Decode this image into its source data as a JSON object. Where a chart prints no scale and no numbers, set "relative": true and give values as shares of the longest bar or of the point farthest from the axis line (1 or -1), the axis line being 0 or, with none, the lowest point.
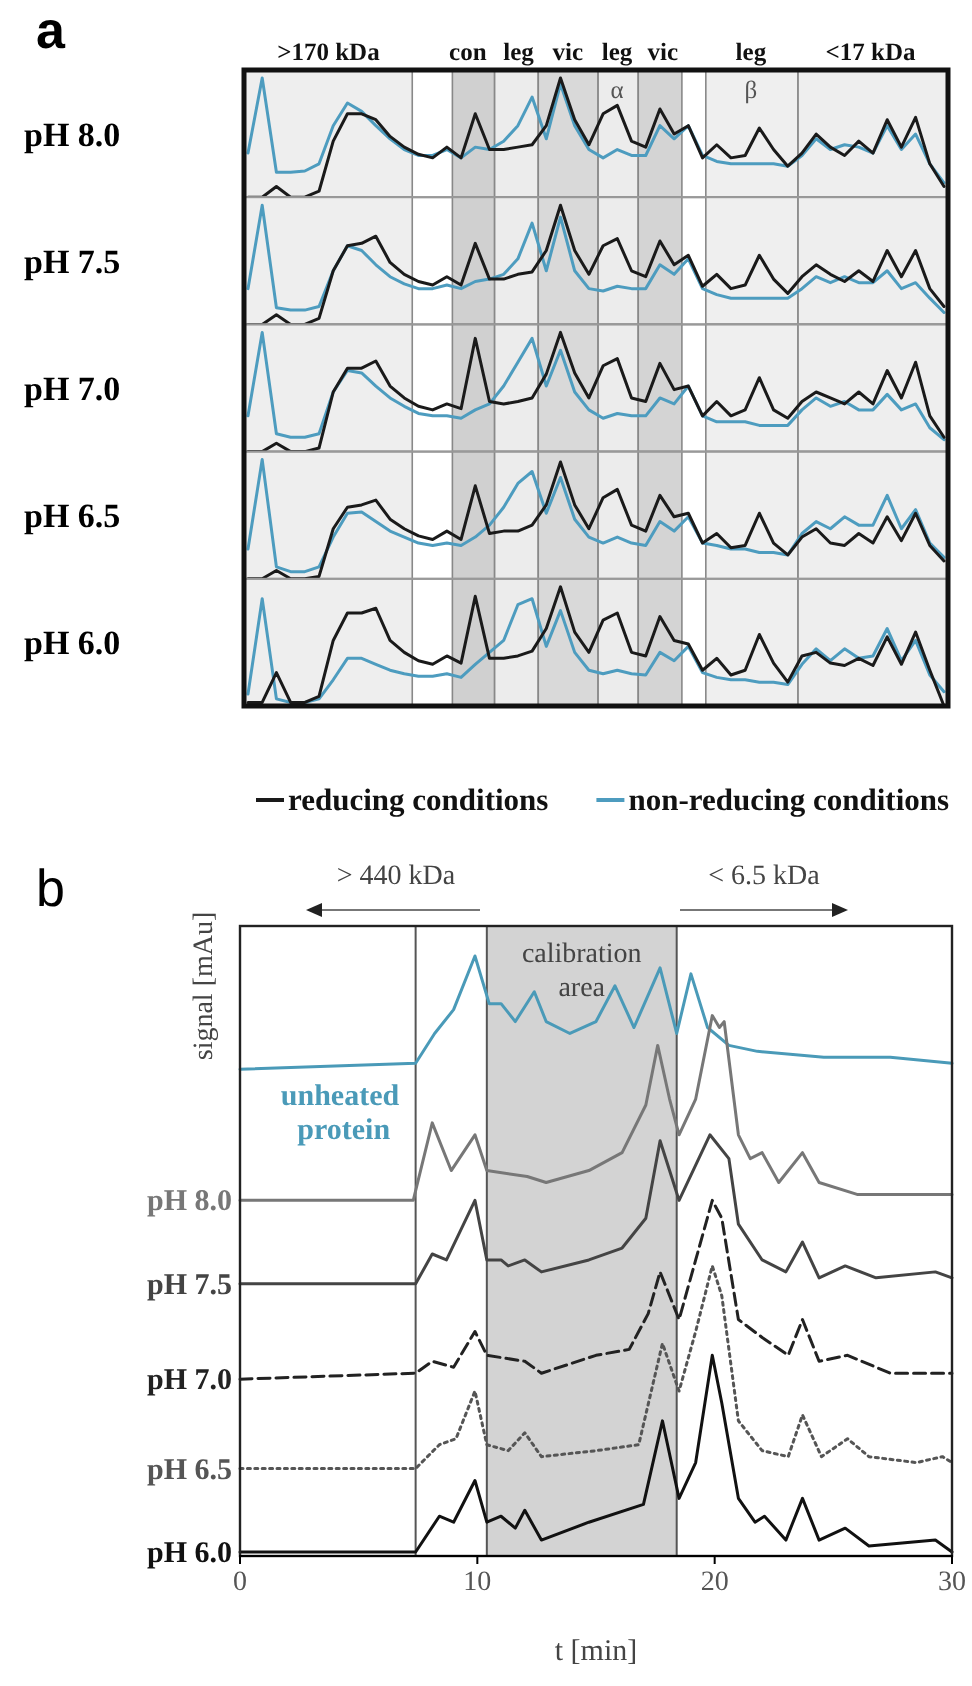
{
  "chart_data": [
    {
      "type": "line",
      "relative": true,
      "ylabel": "pH 8.0",
      "annotations": [
        "a",
        ">170 kDa",
        "con",
        "leg",
        "vic",
        "leg",
        "α",
        "vic",
        "leg",
        "β",
        "<17 kDa"
      ],
      "categories": [
        null,
        null,
        null,
        null,
        null,
        null,
        null,
        null,
        null,
        null,
        null,
        null,
        null,
        null,
        null,
        null,
        null,
        null,
        null,
        null,
        null,
        null,
        null,
        null,
        null,
        null,
        null,
        null,
        null,
        null,
        null,
        null,
        null,
        null,
        null,
        null,
        null,
        null,
        null,
        null,
        null,
        null,
        null,
        null,
        null,
        null,
        null,
        null,
        null,
        null
      ],
      "series": [
        {
          "color": "#1a1a1a",
          "values": [
            0,
            0,
            0.09,
            0,
            0,
            0.05,
            0.47,
            0.7,
            0.7,
            0.65,
            0.51,
            0.42,
            0.36,
            0.33,
            0.42,
            0.33,
            0.7,
            0.4,
            0.4,
            0.42,
            0.44,
            0.6,
            1.0,
            0.65,
            0.44,
            0.7,
            0.77,
            0.47,
            0.42,
            0.74,
            0.53,
            0.6,
            0.33,
            0.44,
            0.33,
            0.35,
            0.58,
            0.4,
            0.26,
            0.37,
            0.53,
            0.42,
            0.35,
            0.47,
            0.37,
            0.65,
            0.42,
            0.67,
            0.28,
            0.09
          ]
        },
        {
          "color": "#4d9cbf",
          "values": [
            0.37,
            1.0,
            0.21,
            0.21,
            0.22,
            0.28,
            0.6,
            0.79,
            0.72,
            0.6,
            0.49,
            0.4,
            0.35,
            0.35,
            0.4,
            0.33,
            0.42,
            0.4,
            0.47,
            0.6,
            0.84,
            0.49,
            0.95,
            0.6,
            0.4,
            0.33,
            0.4,
            0.35,
            0.35,
            0.6,
            0.49,
            0.6,
            0.35,
            0.3,
            0.28,
            0.28,
            0.28,
            0.28,
            0.26,
            0.35,
            0.49,
            0.4,
            0.44,
            0.42,
            0.37,
            0.6,
            0.4,
            0.53,
            0.28,
            0.12
          ]
        }
      ]
    },
    {
      "type": "line",
      "relative": true,
      "ylabel": "pH 7.5",
      "categories": [
        null,
        null,
        null,
        null,
        null,
        null,
        null,
        null,
        null,
        null,
        null,
        null,
        null,
        null,
        null,
        null,
        null,
        null,
        null,
        null,
        null,
        null,
        null,
        null,
        null,
        null,
        null,
        null,
        null,
        null,
        null,
        null,
        null,
        null,
        null,
        null,
        null,
        null,
        null,
        null,
        null,
        null,
        null,
        null,
        null,
        null,
        null,
        null,
        null,
        null
      ],
      "series": [
        {
          "color": "#1a1a1a",
          "values": [
            0,
            0,
            0.08,
            0,
            0,
            0.05,
            0.45,
            0.66,
            0.68,
            0.74,
            0.52,
            0.42,
            0.36,
            0.33,
            0.4,
            0.33,
            0.68,
            0.38,
            0.38,
            0.42,
            0.44,
            0.62,
            1.0,
            0.62,
            0.42,
            0.66,
            0.72,
            0.45,
            0.4,
            0.7,
            0.5,
            0.58,
            0.32,
            0.42,
            0.3,
            0.33,
            0.58,
            0.38,
            0.26,
            0.4,
            0.5,
            0.42,
            0.36,
            0.45,
            0.36,
            0.62,
            0.4,
            0.62,
            0.3,
            0.15
          ]
        },
        {
          "color": "#4d9cbf",
          "values": [
            0.3,
            1.0,
            0.14,
            0.12,
            0.12,
            0.15,
            0.45,
            0.66,
            0.62,
            0.5,
            0.4,
            0.34,
            0.3,
            0.3,
            0.33,
            0.3,
            0.36,
            0.38,
            0.42,
            0.55,
            0.85,
            0.45,
            0.9,
            0.45,
            0.3,
            0.28,
            0.32,
            0.3,
            0.3,
            0.5,
            0.42,
            0.55,
            0.3,
            0.25,
            0.22,
            0.22,
            0.22,
            0.22,
            0.22,
            0.3,
            0.4,
            0.35,
            0.4,
            0.35,
            0.35,
            0.45,
            0.3,
            0.35,
            0.22,
            0.1
          ]
        }
      ]
    },
    {
      "type": "line",
      "relative": true,
      "ylabel": "pH 7.0",
      "categories": [
        null,
        null,
        null,
        null,
        null,
        null,
        null,
        null,
        null,
        null,
        null,
        null,
        null,
        null,
        null,
        null,
        null,
        null,
        null,
        null,
        null,
        null,
        null,
        null,
        null,
        null,
        null,
        null,
        null,
        null,
        null,
        null,
        null,
        null,
        null,
        null,
        null,
        null,
        null,
        null,
        null,
        null,
        null,
        null,
        null,
        null,
        null,
        null,
        null,
        null
      ],
      "series": [
        {
          "color": "#1a1a1a",
          "values": [
            0,
            0,
            0.07,
            0,
            0,
            0.03,
            0.5,
            0.7,
            0.7,
            0.76,
            0.55,
            0.45,
            0.38,
            0.35,
            0.4,
            0.36,
            0.95,
            0.42,
            0.4,
            0.42,
            0.45,
            0.65,
            1.0,
            0.66,
            0.45,
            0.72,
            0.78,
            0.45,
            0.42,
            0.74,
            0.52,
            0.55,
            0.3,
            0.42,
            0.3,
            0.35,
            0.62,
            0.35,
            0.28,
            0.42,
            0.5,
            0.45,
            0.4,
            0.5,
            0.4,
            0.68,
            0.45,
            0.75,
            0.3,
            0.12
          ]
        },
        {
          "color": "#4d9cbf",
          "values": [
            0.3,
            1.0,
            0.15,
            0.12,
            0.12,
            0.15,
            0.5,
            0.68,
            0.66,
            0.55,
            0.45,
            0.38,
            0.32,
            0.3,
            0.3,
            0.28,
            0.35,
            0.4,
            0.55,
            0.75,
            0.95,
            0.55,
            0.85,
            0.5,
            0.35,
            0.28,
            0.32,
            0.3,
            0.3,
            0.45,
            0.4,
            0.55,
            0.3,
            0.25,
            0.25,
            0.25,
            0.22,
            0.22,
            0.22,
            0.35,
            0.45,
            0.38,
            0.42,
            0.35,
            0.35,
            0.48,
            0.35,
            0.4,
            0.2,
            0.1
          ]
        }
      ]
    },
    {
      "type": "line",
      "relative": true,
      "ylabel": "pH 6.5",
      "categories": [
        null,
        null,
        null,
        null,
        null,
        null,
        null,
        null,
        null,
        null,
        null,
        null,
        null,
        null,
        null,
        null,
        null,
        null,
        null,
        null,
        null,
        null,
        null,
        null,
        null,
        null,
        null,
        null,
        null,
        null,
        null,
        null,
        null,
        null,
        null,
        null,
        null,
        null,
        null,
        null,
        null,
        null,
        null,
        null,
        null,
        null,
        null,
        null,
        null,
        null
      ],
      "series": [
        {
          "color": "#1a1a1a",
          "values": [
            0,
            0,
            0.07,
            0,
            0,
            0.02,
            0.42,
            0.6,
            0.62,
            0.66,
            0.5,
            0.42,
            0.36,
            0.33,
            0.4,
            0.33,
            0.78,
            0.38,
            0.4,
            0.4,
            0.45,
            0.62,
            0.98,
            0.62,
            0.42,
            0.68,
            0.75,
            0.45,
            0.4,
            0.7,
            0.52,
            0.55,
            0.3,
            0.38,
            0.26,
            0.28,
            0.55,
            0.3,
            0.2,
            0.35,
            0.42,
            0.3,
            0.28,
            0.38,
            0.3,
            0.52,
            0.32,
            0.55,
            0.28,
            0.15
          ]
        },
        {
          "color": "#4d9cbf",
          "values": [
            0.25,
            1.0,
            0.1,
            0.06,
            0.06,
            0.1,
            0.35,
            0.55,
            0.56,
            0.48,
            0.4,
            0.35,
            0.3,
            0.28,
            0.3,
            0.28,
            0.35,
            0.45,
            0.6,
            0.8,
            0.9,
            0.55,
            0.85,
            0.5,
            0.35,
            0.3,
            0.35,
            0.3,
            0.28,
            0.48,
            0.4,
            0.52,
            0.3,
            0.28,
            0.25,
            0.25,
            0.22,
            0.22,
            0.2,
            0.38,
            0.48,
            0.42,
            0.52,
            0.45,
            0.45,
            0.7,
            0.42,
            0.58,
            0.3,
            0.18
          ]
        }
      ]
    },
    {
      "type": "line",
      "relative": true,
      "ylabel": "pH 6.0",
      "legend": "bottom",
      "categories": [
        null,
        null,
        null,
        null,
        null,
        null,
        null,
        null,
        null,
        null,
        null,
        null,
        null,
        null,
        null,
        null,
        null,
        null,
        null,
        null,
        null,
        null,
        null,
        null,
        null,
        null,
        null,
        null,
        null,
        null,
        null,
        null,
        null,
        null,
        null,
        null,
        null,
        null,
        null,
        null,
        null,
        null,
        null,
        null,
        null,
        null,
        null,
        null,
        null,
        null
      ],
      "series": [
        {
          "name": "reducing conditions",
          "color": "#1a1a1a",
          "values": [
            0.03,
            0.03,
            0.28,
            0.03,
            0.03,
            0.08,
            0.55,
            0.78,
            0.78,
            0.82,
            0.55,
            0.45,
            0.38,
            0.35,
            0.42,
            0.36,
            0.92,
            0.4,
            0.4,
            0.42,
            0.46,
            0.65,
            1.0,
            0.62,
            0.45,
            0.72,
            0.78,
            0.45,
            0.42,
            0.75,
            0.55,
            0.52,
            0.3,
            0.4,
            0.26,
            0.3,
            0.6,
            0.36,
            0.2,
            0.42,
            0.45,
            0.36,
            0.34,
            0.4,
            0.34,
            0.58,
            0.35,
            0.62,
            0.3,
            0
          ]
        },
        {
          "name": "non-reducing conditions",
          "color": "#4d9cbf",
          "values": [
            0.1,
            0.9,
            0.06,
            0.03,
            0.03,
            0.06,
            0.22,
            0.4,
            0.4,
            0.35,
            0.3,
            0.27,
            0.25,
            0.25,
            0.27,
            0.24,
            0.35,
            0.45,
            0.55,
            0.85,
            0.9,
            0.5,
            0.8,
            0.45,
            0.3,
            0.27,
            0.3,
            0.27,
            0.26,
            0.45,
            0.38,
            0.5,
            0.28,
            0.24,
            0.22,
            0.22,
            0.2,
            0.2,
            0.18,
            0.35,
            0.48,
            0.38,
            0.48,
            0.4,
            0.42,
            0.65,
            0.38,
            0.55,
            0.26,
            0.12
          ]
        }
      ]
    },
    {
      "type": "line",
      "relative": true,
      "xlabel": "t [min]",
      "ylabel": "signal [mAu]",
      "xlim": [
        0,
        30
      ],
      "xticks": [
        0,
        10,
        20,
        30
      ],
      "annotations": [
        "b",
        "> 440 kDa",
        "< 6.5 kDa"
      ],
      "bands": [
        {
          "axis": "x",
          "from": 10.4,
          "to": 18.4,
          "label": "calibration\narea",
          "color": "#d3d3d3"
        }
      ],
      "ref_lines": [
        {
          "axis": "x",
          "value": 7.4
        }
      ],
      "series": [
        {
          "name": "unheated protein",
          "color": "#4a9ab8",
          "line_style": "solid",
          "x": [
            0,
            7.4,
            8.2,
            9.0,
            9.9,
            10.5,
            11.0,
            11.6,
            12.4,
            12.9,
            13.9,
            15.0,
            15.8,
            16.6,
            17.7,
            18.4,
            19.0,
            19.7,
            20.6,
            21.8,
            24.6,
            27.4,
            30
          ],
          "values": [
            0.81,
            0.82,
            0.87,
            0.91,
            1.0,
            0.92,
            0.92,
            0.89,
            0.94,
            0.89,
            0.87,
            0.89,
            0.95,
            0.88,
            0.98,
            0.87,
            0.97,
            0.88,
            0.85,
            0.84,
            0.83,
            0.83,
            0.82
          ]
        },
        {
          "name": "pH 8.0",
          "color": "#777777",
          "line_style": "solid",
          "x": [
            0,
            7.3,
            8.1,
            8.9,
            9.9,
            10.4,
            12.1,
            12.9,
            14.7,
            16.1,
            17.1,
            17.6,
            18.1,
            18.5,
            19.2,
            19.9,
            20.2,
            20.4,
            21.0,
            21.5,
            22.0,
            22.7,
            23.7,
            24.4,
            26.0,
            30
          ],
          "values": [
            0.59,
            0.59,
            0.72,
            0.64,
            0.7,
            0.64,
            0.63,
            0.62,
            0.64,
            0.67,
            0.75,
            0.85,
            0.76,
            0.7,
            0.76,
            0.9,
            0.88,
            0.89,
            0.7,
            0.66,
            0.67,
            0.62,
            0.67,
            0.62,
            0.6,
            0.6
          ]
        },
        {
          "name": "pH 7.5",
          "color": "#444444",
          "line_style": "solid",
          "x": [
            0,
            7.4,
            8.1,
            8.7,
            9.9,
            10.4,
            11.0,
            11.3,
            12.0,
            12.7,
            14.7,
            16.1,
            17.1,
            17.7,
            18.1,
            18.5,
            19.8,
            20.6,
            21.0,
            22.0,
            23.0,
            23.7,
            24.4,
            25.5,
            26.8,
            29.3,
            30
          ],
          "values": [
            0.45,
            0.45,
            0.5,
            0.49,
            0.59,
            0.49,
            0.49,
            0.48,
            0.49,
            0.47,
            0.49,
            0.51,
            0.56,
            0.69,
            0.64,
            0.59,
            0.7,
            0.66,
            0.55,
            0.49,
            0.47,
            0.52,
            0.46,
            0.48,
            0.46,
            0.47,
            0.46
          ]
        },
        {
          "name": "pH 7.0",
          "color": "#222222",
          "line_style": "dashed",
          "x": [
            0,
            7.4,
            8.1,
            9.0,
            9.9,
            10.4,
            12.0,
            12.7,
            15.0,
            16.4,
            17.2,
            17.7,
            18.1,
            18.5,
            19.2,
            19.9,
            20.3,
            21.0,
            22.0,
            23.1,
            23.7,
            24.4,
            25.6,
            27.4,
            30
          ],
          "values": [
            0.29,
            0.3,
            0.32,
            0.31,
            0.37,
            0.33,
            0.32,
            0.3,
            0.33,
            0.34,
            0.4,
            0.47,
            0.43,
            0.39,
            0.49,
            0.59,
            0.56,
            0.39,
            0.36,
            0.33,
            0.39,
            0.32,
            0.33,
            0.3,
            0.3
          ]
        },
        {
          "name": "pH 6.5",
          "color": "#555555",
          "line_style": "dotted",
          "x": [
            0,
            7.4,
            8.4,
            9.1,
            9.9,
            10.4,
            11.3,
            12.0,
            12.7,
            15.0,
            16.8,
            17.8,
            18.5,
            19.2,
            19.9,
            20.3,
            21.0,
            22.0,
            23.1,
            23.7,
            24.5,
            25.6,
            26.5,
            28.5,
            29.6,
            30
          ],
          "values": [
            0.14,
            0.14,
            0.18,
            0.19,
            0.27,
            0.18,
            0.17,
            0.2,
            0.16,
            0.17,
            0.18,
            0.35,
            0.27,
            0.37,
            0.48,
            0.43,
            0.22,
            0.17,
            0.16,
            0.23,
            0.16,
            0.19,
            0.16,
            0.15,
            0.16,
            0.15
          ]
        },
        {
          "name": "pH 6.0",
          "color": "#111111",
          "line_style": "solid",
          "x": [
            0,
            7.4,
            8.4,
            9.0,
            9.9,
            10.4,
            11.0,
            11.6,
            12.0,
            12.7,
            14.7,
            17.0,
            17.8,
            18.5,
            19.2,
            19.9,
            20.3,
            21.0,
            21.7,
            22.1,
            23.0,
            23.7,
            24.4,
            25.5,
            26.5,
            29.3,
            30
          ],
          "values": [
            0,
            0,
            0.06,
            0.05,
            0.12,
            0.05,
            0.06,
            0.04,
            0.07,
            0.02,
            0.05,
            0.08,
            0.22,
            0.09,
            0.15,
            0.33,
            0.25,
            0.09,
            0.05,
            0.06,
            0.02,
            0.09,
            0.02,
            0.04,
            0.01,
            0.02,
            0
          ]
        }
      ]
    }
  ]
}
